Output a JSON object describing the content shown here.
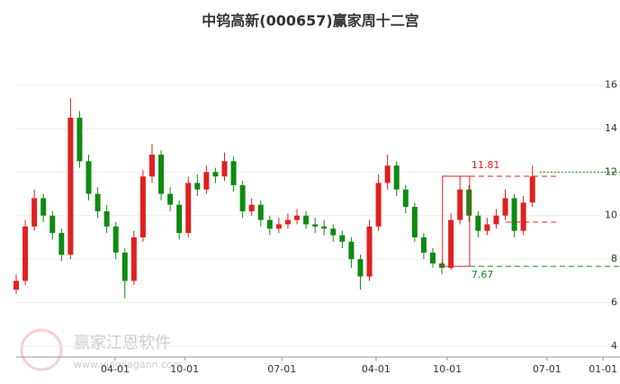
{
  "chart_data": {
    "type": "candlestick",
    "title": "中钨高新(000657)赢家周十二宫",
    "x": [
      0,
      1.5,
      3,
      4.5,
      6,
      7.5,
      9,
      10.5,
      12,
      13.5,
      15,
      16.5,
      18,
      19.5,
      21,
      22.5,
      24,
      25.5,
      27,
      28.5,
      30,
      31.5,
      33,
      34.5,
      36,
      37.5,
      39,
      40.5,
      42,
      43.5,
      45,
      46.5,
      48,
      49.5,
      51,
      52.5,
      54,
      55.5,
      57,
      58.5,
      60,
      61.5,
      63,
      64.5,
      66,
      67.5,
      69,
      70.5,
      72,
      73.5,
      75,
      76.5,
      78,
      79.5,
      81,
      82.5,
      84,
      85.5
    ],
    "open": [
      6.6,
      7.0,
      9.5,
      10.8,
      10.0,
      9.2,
      8.2,
      14.5,
      12.5,
      11.0,
      10.2,
      9.5,
      8.3,
      7.0,
      9.0,
      11.8,
      12.8,
      11.0,
      10.5,
      9.2,
      11.5,
      11.2,
      12.0,
      11.8,
      12.5,
      11.4,
      10.2,
      10.5,
      9.8,
      9.4,
      9.6,
      9.8,
      10.0,
      9.6,
      9.5,
      9.4,
      9.1,
      8.8,
      8.0,
      7.2,
      9.5,
      11.5,
      12.3,
      11.2,
      10.4,
      9.0,
      8.3,
      7.8,
      7.6,
      9.8,
      11.2,
      10.0,
      9.3,
      9.6,
      10.0,
      10.8,
      9.3,
      10.6
    ],
    "high": [
      7.3,
      9.8,
      11.2,
      11.0,
      10.2,
      9.4,
      15.4,
      14.8,
      12.8,
      11.3,
      10.5,
      9.7,
      8.5,
      9.3,
      12.1,
      13.3,
      13.0,
      11.3,
      10.7,
      11.8,
      11.9,
      12.3,
      12.2,
      12.9,
      12.7,
      11.6,
      10.8,
      10.7,
      10.0,
      9.9,
      10.1,
      10.3,
      10.2,
      9.9,
      9.8,
      9.6,
      9.3,
      9.0,
      8.2,
      9.8,
      11.9,
      12.8,
      12.5,
      11.4,
      10.6,
      9.2,
      8.5,
      7.9,
      10.1,
      11.8,
      11.4,
      10.2,
      9.9,
      10.3,
      11.2,
      11.0,
      10.9,
      12.3
    ],
    "low": [
      6.4,
      6.8,
      9.3,
      9.7,
      8.9,
      7.9,
      8.0,
      12.2,
      10.7,
      9.9,
      9.2,
      8.0,
      6.2,
      6.8,
      8.8,
      11.5,
      10.7,
      10.2,
      8.9,
      9.0,
      10.9,
      11.0,
      11.5,
      11.6,
      11.1,
      9.9,
      10.0,
      9.5,
      9.1,
      9.2,
      9.4,
      9.6,
      9.4,
      9.2,
      9.1,
      8.8,
      8.5,
      7.6,
      6.6,
      7.0,
      9.3,
      11.2,
      10.9,
      10.1,
      8.8,
      8.0,
      7.6,
      7.3,
      7.5,
      9.6,
      9.7,
      9.0,
      9.1,
      9.4,
      9.8,
      9.0,
      9.1,
      10.4
    ],
    "close": [
      7.0,
      9.5,
      10.8,
      10.0,
      9.2,
      8.2,
      14.5,
      12.5,
      11.0,
      10.2,
      9.5,
      8.3,
      7.0,
      9.0,
      11.8,
      12.8,
      11.0,
      10.5,
      9.2,
      11.5,
      11.2,
      12.0,
      11.8,
      12.5,
      11.4,
      10.2,
      10.5,
      9.8,
      9.4,
      9.6,
      9.8,
      10.0,
      9.6,
      9.5,
      9.4,
      9.1,
      8.8,
      8.0,
      7.2,
      9.5,
      11.5,
      12.3,
      11.2,
      10.4,
      9.0,
      8.3,
      7.8,
      7.6,
      9.8,
      11.2,
      10.0,
      9.3,
      9.6,
      10.0,
      10.8,
      9.3,
      10.6,
      11.8
    ],
    "up_color": "#e02020",
    "down_color": "#108a10",
    "xlim": [
      0,
      100
    ],
    "xticks": [
      {
        "value": 16.4,
        "label": "04-01"
      },
      {
        "value": 27.9,
        "label": "10-01"
      },
      {
        "value": 44,
        "label": "07-01"
      },
      {
        "value": 59.6,
        "label": "04-01"
      },
      {
        "value": 71.4,
        "label": "10-01"
      },
      {
        "value": 87.9,
        "label": "07-01"
      },
      {
        "value": 97.2,
        "label": "01-01"
      }
    ],
    "ylim": [
      3.5,
      18.05
    ],
    "yticks": [
      4,
      6,
      8,
      10,
      12,
      14,
      16
    ],
    "grid": true,
    "box": {
      "x0": 70.6,
      "x1": 75.1,
      "high": 11.81,
      "low": 7.67,
      "color": "#e02020"
    },
    "levels": [
      {
        "value": 11.81,
        "label": "11.81",
        "x0": 75.1,
        "x1": 89.4,
        "color": "#e02020",
        "dash": "6,4"
      },
      {
        "value": 7.67,
        "label": "7.67",
        "x0": 75.1,
        "x1": 100,
        "color": "#108a10",
        "dash": "6,4"
      },
      {
        "value": 9.7,
        "x0": 81.1,
        "x1": 89.4,
        "color": "#e02020",
        "dash": "6,4"
      },
      {
        "value": 12.0,
        "x0": 86.7,
        "x1": 100,
        "color": "#108a10",
        "dash": "2,2"
      }
    ],
    "watermark": [
      "赢家江恩软件",
      "www.yingjiagann.com"
    ]
  }
}
